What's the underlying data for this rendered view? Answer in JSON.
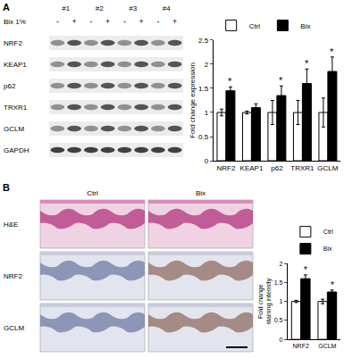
{
  "figure": {
    "panel_labels": [
      "A",
      "B"
    ],
    "blot": {
      "samples": [
        "#1",
        "#2",
        "#3",
        "#4"
      ],
      "treatment": "Bix 1%",
      "lanes": [
        "-",
        "+"
      ],
      "proteins": [
        "NRF2",
        "KEAP1",
        "p62",
        "TRXR1",
        "GCLM",
        "GAPDH"
      ]
    },
    "histology": {
      "columns": [
        "Ctrl",
        "Bix"
      ],
      "rows": [
        "H&E",
        "NRF2",
        "GCLM"
      ]
    }
  },
  "chart_data": [
    {
      "type": "bar",
      "categories": [
        "NRF2",
        "KEAP1",
        "p62",
        "TRXR1",
        "GCLM"
      ],
      "series": [
        {
          "name": "Ctrl",
          "color": "#ffffff",
          "values": [
            1,
            1,
            1,
            1,
            1
          ],
          "errors": [
            0.07,
            0.03,
            0.25,
            0.25,
            0.3
          ]
        },
        {
          "name": "Bix",
          "color": "#000000",
          "values": [
            1.45,
            1.1,
            1.35,
            1.6,
            1.85
          ],
          "errors": [
            0.08,
            0.08,
            0.2,
            0.3,
            0.3
          ]
        }
      ],
      "ylabel": "Fold change expression",
      "ylim": [
        0,
        2.5
      ],
      "yticks": [
        0,
        0.5,
        1,
        1.5,
        2,
        2.5
      ],
      "grid": false,
      "legend": "top left",
      "annotations": [
        {
          "category": "NRF2",
          "series": "Bix",
          "text": "*"
        },
        {
          "category": "p62",
          "series": "Bix",
          "text": "*"
        },
        {
          "category": "TRXR1",
          "series": "Bix",
          "text": "*"
        },
        {
          "category": "GCLM",
          "series": "Bix",
          "text": "*"
        }
      ]
    },
    {
      "type": "bar",
      "categories": [
        "NRF2",
        "GCLM"
      ],
      "series": [
        {
          "name": "Ctrl",
          "color": "#ffffff",
          "values": [
            1,
            1
          ],
          "errors": [
            0.03,
            0.06
          ]
        },
        {
          "name": "Bix",
          "color": "#000000",
          "values": [
            1.6,
            1.25
          ],
          "errors": [
            0.1,
            0.05
          ]
        }
      ],
      "ylabel": "Fold change staining intensity",
      "ylim": [
        0,
        2
      ],
      "yticks": [
        0,
        0.5,
        1,
        1.5,
        2
      ],
      "grid": false,
      "legend": "top left",
      "annotations": [
        {
          "category": "NRF2",
          "series": "Bix",
          "text": "*"
        },
        {
          "category": "GCLM",
          "series": "Bix",
          "text": "*"
        }
      ]
    }
  ]
}
